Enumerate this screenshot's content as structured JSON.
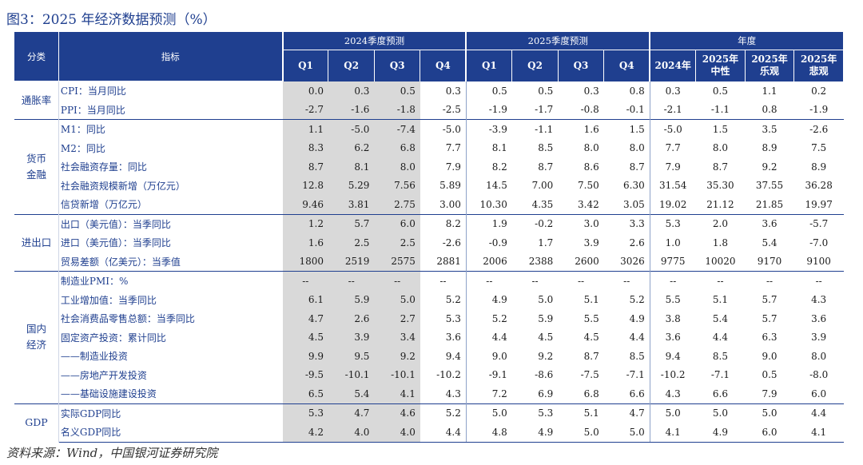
{
  "caption": "图3：2025 年经济数据预测（%）",
  "header": {
    "category": "分类",
    "indicator": "指标",
    "group_2024": "2024季度预测",
    "group_2025": "2025季度预测",
    "group_annual": "年度",
    "q_labels": [
      "Q1",
      "Q2",
      "Q3",
      "Q4"
    ],
    "annual_cols": [
      {
        "line1": "2024年",
        "line2": ""
      },
      {
        "line1": "2025年",
        "line2": "中性"
      },
      {
        "line1": "2025年",
        "line2": "乐观"
      },
      {
        "line1": "2025年",
        "line2": "悲观"
      }
    ]
  },
  "groups": [
    {
      "category": "通胀率",
      "rows": [
        {
          "label": "CPI：当月同比",
          "v": [
            "0.0",
            "0.3",
            "0.5",
            "0.3",
            "0.5",
            "0.5",
            "0.3",
            "0.8",
            "0.3",
            "0.5",
            "1.1",
            "0.2"
          ]
        },
        {
          "label": "PPI：当月同比",
          "v": [
            "-2.7",
            "-1.6",
            "-1.8",
            "-2.5",
            "-1.9",
            "-1.7",
            "-0.8",
            "-0.1",
            "-2.1",
            "-1.1",
            "0.8",
            "-1.9"
          ]
        }
      ]
    },
    {
      "category": "货币金融",
      "rows": [
        {
          "label": "M1：同比",
          "v": [
            "1.1",
            "-5.0",
            "-7.4",
            "-5.0",
            "-3.9",
            "-1.1",
            "1.6",
            "1.5",
            "-5.0",
            "1.5",
            "3.5",
            "-2.6"
          ]
        },
        {
          "label": "M2：同比",
          "v": [
            "8.3",
            "6.2",
            "6.8",
            "7.7",
            "8.1",
            "8.5",
            "8.0",
            "8.0",
            "7.7",
            "8.0",
            "8.9",
            "7.5"
          ]
        },
        {
          "label": "社会融资存量：同比",
          "v": [
            "8.7",
            "8.1",
            "8.0",
            "7.9",
            "8.2",
            "8.7",
            "8.6",
            "8.7",
            "7.9",
            "8.7",
            "9.2",
            "8.9"
          ]
        },
        {
          "label": "社会融资规模新增（万亿元）",
          "v": [
            "12.8",
            "5.29",
            "7.56",
            "5.89",
            "14.5",
            "7.00",
            "7.50",
            "6.30",
            "31.54",
            "35.30",
            "37.55",
            "36.28"
          ]
        },
        {
          "label": "信贷新增（万亿元）",
          "v": [
            "9.46",
            "3.81",
            "2.75",
            "3.00",
            "10.30",
            "4.35",
            "3.42",
            "3.05",
            "19.02",
            "21.12",
            "21.85",
            "19.97"
          ]
        }
      ]
    },
    {
      "category": "进出口",
      "rows": [
        {
          "label": "出口（美元值）：当季同比",
          "v": [
            "1.2",
            "5.7",
            "6.0",
            "8.2",
            "1.9",
            "-0.2",
            "3.0",
            "3.3",
            "5.3",
            "2.0",
            "3.6",
            "-5.7"
          ]
        },
        {
          "label": "进口（美元值）：当季同比",
          "v": [
            "1.6",
            "2.5",
            "2.5",
            "-2.6",
            "-0.9",
            "1.7",
            "3.9",
            "2.6",
            "1.0",
            "1.8",
            "5.4",
            "-7.0"
          ]
        },
        {
          "label": "贸易差额（亿美元）：当季值",
          "v": [
            "1800",
            "2519",
            "2575",
            "2881",
            "2006",
            "2388",
            "2600",
            "3026",
            "9775",
            "10020",
            "9170",
            "9100"
          ]
        }
      ]
    },
    {
      "category": "国内经济",
      "rows": [
        {
          "label": "制造业PMI：%",
          "v": [
            "--",
            "--",
            "--",
            "--",
            "--",
            "--",
            "--",
            "--",
            "--",
            "--",
            "--",
            "--"
          ]
        },
        {
          "label": "工业增加值：当季同比",
          "v": [
            "6.1",
            "5.9",
            "5.0",
            "5.2",
            "4.9",
            "5.0",
            "5.1",
            "5.2",
            "5.5",
            "5.1",
            "5.7",
            "4.3"
          ]
        },
        {
          "label": "社会消费品零售总额：当季同比",
          "v": [
            "4.7",
            "2.6",
            "2.7",
            "5.3",
            "5.2",
            "5.9",
            "5.5",
            "4.9",
            "3.8",
            "5.4",
            "5.7",
            "3.6"
          ]
        },
        {
          "label": "固定资产投资：累计同比",
          "v": [
            "4.5",
            "3.9",
            "3.4",
            "3.6",
            "4.4",
            "4.5",
            "4.5",
            "4.4",
            "3.6",
            "4.4",
            "6.3",
            "3.9"
          ]
        },
        {
          "label": "——制造业投资",
          "v": [
            "9.9",
            "9.5",
            "9.2",
            "9.4",
            "9.0",
            "9.2",
            "8.7",
            "8.5",
            "9.4",
            "8.5",
            "9.0",
            "8.0"
          ]
        },
        {
          "label": "——房地产开发投资",
          "v": [
            "-9.5",
            "-10.1",
            "-10.1",
            "-10.2",
            "-9.1",
            "-8.6",
            "-7.5",
            "-7.1",
            "-10.2",
            "-7.1",
            "0.5",
            "-8.0"
          ]
        },
        {
          "label": "——基础设施建设投资",
          "v": [
            "6.5",
            "5.4",
            "4.1",
            "4.3",
            "7.2",
            "6.9",
            "6.8",
            "6.6",
            "4.3",
            "6.6",
            "7.9",
            "6.0"
          ]
        }
      ]
    },
    {
      "category": "GDP",
      "rows": [
        {
          "label": "实际GDP同比",
          "v": [
            "5.3",
            "4.7",
            "4.6",
            "5.2",
            "5.0",
            "5.3",
            "5.1",
            "4.7",
            "5.0",
            "5.0",
            "5.0",
            "4.4"
          ]
        },
        {
          "label": "名义GDP同比",
          "v": [
            "4.2",
            "4.0",
            "4.0",
            "4.4",
            "4.8",
            "4.9",
            "5.0",
            "5.0",
            "4.1",
            "4.9",
            "6.0",
            "4.1"
          ]
        }
      ]
    }
  ],
  "source": "资料来源：Wind，中国银河证券研究院"
}
